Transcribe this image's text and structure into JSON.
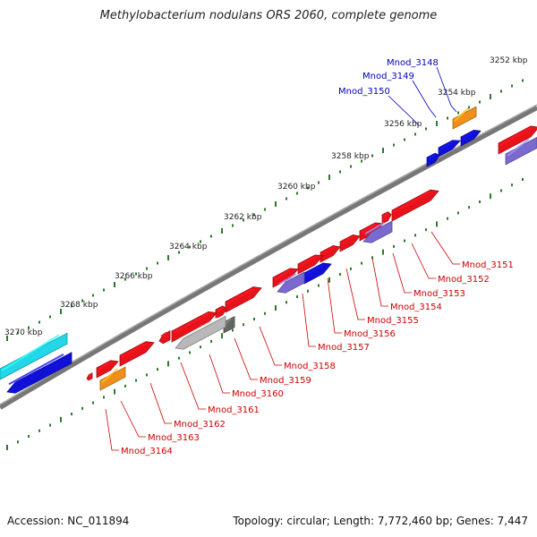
{
  "title": "Methylobacterium nodulans ORS 2060, complete genome",
  "footer": {
    "accession": "Accession: NC_011894",
    "summary": "Topology: circular; Length: 7,772,460 bp; Genes: 7,447"
  },
  "colors": {
    "backbone": "#777777",
    "ticks": "#2a7a2a",
    "forward_gene": "#e8121a",
    "reverse_gene": "#1010d8",
    "other_gene": "#f0901a",
    "cyan_gene": "#22d8e8",
    "purple_gene": "#7a6ad0",
    "grey_gene": "#b8b8b8",
    "label_red": "#cc0000",
    "label_blue": "#0000bb"
  },
  "scale_labels": [
    "3252 kbp",
    "3254 kbp",
    "3256 kbp",
    "3258 kbp",
    "3260 kbp",
    "3262 kbp",
    "3264 kbp",
    "3266 kbp",
    "3268 kbp",
    "3270 kbp"
  ],
  "gene_labels_top": [
    "Mnod_3148",
    "Mnod_3149",
    "Mnod_3150"
  ],
  "gene_labels_bottom": [
    "Mnod_3151",
    "Mnod_3152",
    "Mnod_3153",
    "Mnod_3154",
    "Mnod_3155",
    "Mnod_3156",
    "Mnod_3157",
    "Mnod_3158",
    "Mnod_3159",
    "Mnod_3160",
    "Mnod_3161",
    "Mnod_3162",
    "Mnod_3163",
    "Mnod_3164"
  ]
}
